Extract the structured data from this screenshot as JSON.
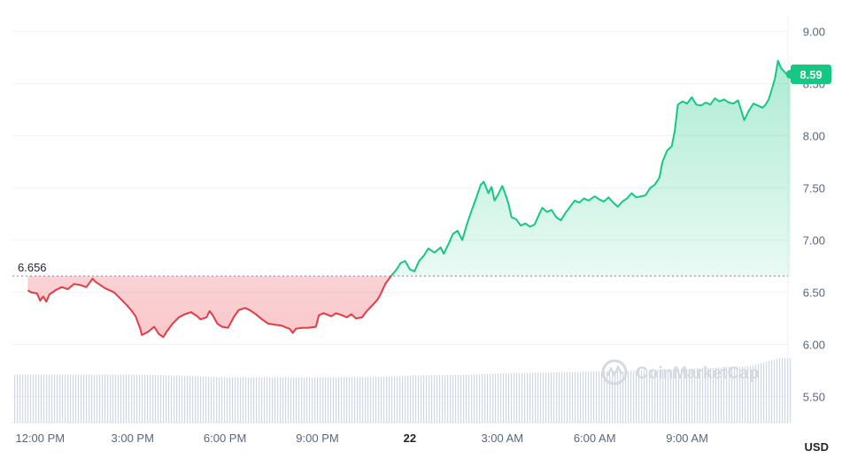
{
  "chart_data": {
    "type": "area",
    "unit_label": "USD",
    "watermark": "CoinMarketCap",
    "reference": {
      "value": 6.656,
      "label": "6.656"
    },
    "current": {
      "value": 8.59,
      "label": "8.59"
    },
    "ylim": [
      5.25,
      9.15
    ],
    "y_ticks": [
      "5.50",
      "6.00",
      "6.50",
      "7.00",
      "7.50",
      "8.00",
      "8.50",
      "9.00"
    ],
    "x_ticks": [
      {
        "label": "12:00 PM",
        "hour": 0
      },
      {
        "label": "3:00 PM",
        "hour": 3
      },
      {
        "label": "6:00 PM",
        "hour": 6
      },
      {
        "label": "9:00 PM",
        "hour": 9
      },
      {
        "label": "22",
        "hour": 12
      },
      {
        "label": "3:00 AM",
        "hour": 15
      },
      {
        "label": "6:00 AM",
        "hour": 18
      },
      {
        "label": "9:00 AM",
        "hour": 21
      }
    ],
    "xlim": [
      -0.9,
      23.9
    ],
    "colors": {
      "up": "#16c784",
      "down": "#ea3943",
      "grid": "#eff2f5",
      "volume": "#cfd6e4"
    },
    "price": [
      [
        -0.4,
        6.52
      ],
      [
        -0.3,
        6.5
      ],
      [
        -0.1,
        6.49
      ],
      [
        0.0,
        6.42
      ],
      [
        0.1,
        6.46
      ],
      [
        0.2,
        6.41
      ],
      [
        0.3,
        6.48
      ],
      [
        0.5,
        6.52
      ],
      [
        0.7,
        6.55
      ],
      [
        0.9,
        6.53
      ],
      [
        1.1,
        6.58
      ],
      [
        1.3,
        6.57
      ],
      [
        1.5,
        6.55
      ],
      [
        1.7,
        6.63
      ],
      [
        1.8,
        6.6
      ],
      [
        1.9,
        6.58
      ],
      [
        2.1,
        6.54
      ],
      [
        2.4,
        6.5
      ],
      [
        2.6,
        6.44
      ],
      [
        2.8,
        6.38
      ],
      [
        2.95,
        6.33
      ],
      [
        3.1,
        6.27
      ],
      [
        3.25,
        6.15
      ],
      [
        3.3,
        6.09
      ],
      [
        3.5,
        6.12
      ],
      [
        3.7,
        6.17
      ],
      [
        3.85,
        6.1
      ],
      [
        4.0,
        6.07
      ],
      [
        4.1,
        6.12
      ],
      [
        4.3,
        6.2
      ],
      [
        4.5,
        6.26
      ],
      [
        4.7,
        6.29
      ],
      [
        4.9,
        6.31
      ],
      [
        5.1,
        6.27
      ],
      [
        5.2,
        6.24
      ],
      [
        5.4,
        6.26
      ],
      [
        5.5,
        6.32
      ],
      [
        5.6,
        6.28
      ],
      [
        5.75,
        6.2
      ],
      [
        5.9,
        6.17
      ],
      [
        6.1,
        6.16
      ],
      [
        6.3,
        6.27
      ],
      [
        6.45,
        6.33
      ],
      [
        6.65,
        6.35
      ],
      [
        6.8,
        6.33
      ],
      [
        7.0,
        6.29
      ],
      [
        7.2,
        6.24
      ],
      [
        7.4,
        6.2
      ],
      [
        7.6,
        6.19
      ],
      [
        7.85,
        6.18
      ],
      [
        8.0,
        6.16
      ],
      [
        8.1,
        6.15
      ],
      [
        8.2,
        6.11
      ],
      [
        8.3,
        6.15
      ],
      [
        8.5,
        6.16
      ],
      [
        8.7,
        6.16
      ],
      [
        8.95,
        6.17
      ],
      [
        9.05,
        6.28
      ],
      [
        9.2,
        6.3
      ],
      [
        9.45,
        6.27
      ],
      [
        9.6,
        6.3
      ],
      [
        9.8,
        6.28
      ],
      [
        9.95,
        6.26
      ],
      [
        10.1,
        6.29
      ],
      [
        10.25,
        6.25
      ],
      [
        10.45,
        6.26
      ],
      [
        10.6,
        6.32
      ],
      [
        10.8,
        6.38
      ],
      [
        10.95,
        6.43
      ],
      [
        11.05,
        6.48
      ],
      [
        11.2,
        6.58
      ],
      [
        11.4,
        6.66
      ],
      [
        11.55,
        6.71
      ],
      [
        11.7,
        6.78
      ],
      [
        11.85,
        6.8
      ],
      [
        12.0,
        6.72
      ],
      [
        12.15,
        6.7
      ],
      [
        12.3,
        6.8
      ],
      [
        12.45,
        6.85
      ],
      [
        12.6,
        6.92
      ],
      [
        12.8,
        6.88
      ],
      [
        13.0,
        6.93
      ],
      [
        13.1,
        6.87
      ],
      [
        13.25,
        6.96
      ],
      [
        13.4,
        7.06
      ],
      [
        13.55,
        7.09
      ],
      [
        13.7,
        7.0
      ],
      [
        13.85,
        7.15
      ],
      [
        14.0,
        7.28
      ],
      [
        14.15,
        7.4
      ],
      [
        14.3,
        7.53
      ],
      [
        14.4,
        7.56
      ],
      [
        14.55,
        7.45
      ],
      [
        14.65,
        7.51
      ],
      [
        14.75,
        7.38
      ],
      [
        14.85,
        7.43
      ],
      [
        15.0,
        7.52
      ],
      [
        15.1,
        7.44
      ],
      [
        15.2,
        7.35
      ],
      [
        15.3,
        7.22
      ],
      [
        15.45,
        7.2
      ],
      [
        15.6,
        7.14
      ],
      [
        15.75,
        7.16
      ],
      [
        15.9,
        7.13
      ],
      [
        16.05,
        7.15
      ],
      [
        16.2,
        7.25
      ],
      [
        16.3,
        7.31
      ],
      [
        16.45,
        7.27
      ],
      [
        16.6,
        7.29
      ],
      [
        16.75,
        7.22
      ],
      [
        16.9,
        7.19
      ],
      [
        17.05,
        7.26
      ],
      [
        17.2,
        7.32
      ],
      [
        17.35,
        7.38
      ],
      [
        17.5,
        7.36
      ],
      [
        17.65,
        7.4
      ],
      [
        17.8,
        7.38
      ],
      [
        18.0,
        7.42
      ],
      [
        18.15,
        7.39
      ],
      [
        18.3,
        7.37
      ],
      [
        18.45,
        7.41
      ],
      [
        18.6,
        7.36
      ],
      [
        18.75,
        7.32
      ],
      [
        18.9,
        7.37
      ],
      [
        19.05,
        7.4
      ],
      [
        19.2,
        7.45
      ],
      [
        19.35,
        7.41
      ],
      [
        19.5,
        7.42
      ],
      [
        19.65,
        7.43
      ],
      [
        19.8,
        7.5
      ],
      [
        19.95,
        7.53
      ],
      [
        20.1,
        7.6
      ],
      [
        20.2,
        7.75
      ],
      [
        20.35,
        7.86
      ],
      [
        20.5,
        7.9
      ],
      [
        20.6,
        8.05
      ],
      [
        20.7,
        8.3
      ],
      [
        20.85,
        8.33
      ],
      [
        21.0,
        8.31
      ],
      [
        21.15,
        8.37
      ],
      [
        21.3,
        8.3
      ],
      [
        21.45,
        8.29
      ],
      [
        21.6,
        8.32
      ],
      [
        21.75,
        8.3
      ],
      [
        21.9,
        8.36
      ],
      [
        22.05,
        8.33
      ],
      [
        22.2,
        8.35
      ],
      [
        22.35,
        8.32
      ],
      [
        22.5,
        8.31
      ],
      [
        22.65,
        8.34
      ],
      [
        22.75,
        8.25
      ],
      [
        22.85,
        8.15
      ],
      [
        23.0,
        8.24
      ],
      [
        23.15,
        8.31
      ],
      [
        23.3,
        8.29
      ],
      [
        23.45,
        8.27
      ],
      [
        23.55,
        8.3
      ],
      [
        23.65,
        8.35
      ],
      [
        23.75,
        8.45
      ],
      [
        23.85,
        8.55
      ],
      [
        23.95,
        8.72
      ],
      [
        24.05,
        8.65
      ],
      [
        24.2,
        8.6
      ],
      [
        24.35,
        8.59
      ]
    ],
    "volume_profile": [
      [
        -0.9,
        0.41
      ],
      [
        0.0,
        0.41
      ],
      [
        3.0,
        0.41
      ],
      [
        4.5,
        0.4
      ],
      [
        6.0,
        0.385
      ],
      [
        9.0,
        0.385
      ],
      [
        11.0,
        0.39
      ],
      [
        12.0,
        0.4
      ],
      [
        14.0,
        0.41
      ],
      [
        15.0,
        0.42
      ],
      [
        17.0,
        0.43
      ],
      [
        19.0,
        0.44
      ],
      [
        21.0,
        0.46
      ],
      [
        23.0,
        0.48
      ],
      [
        24.0,
        0.55
      ],
      [
        24.35,
        0.55
      ]
    ]
  }
}
